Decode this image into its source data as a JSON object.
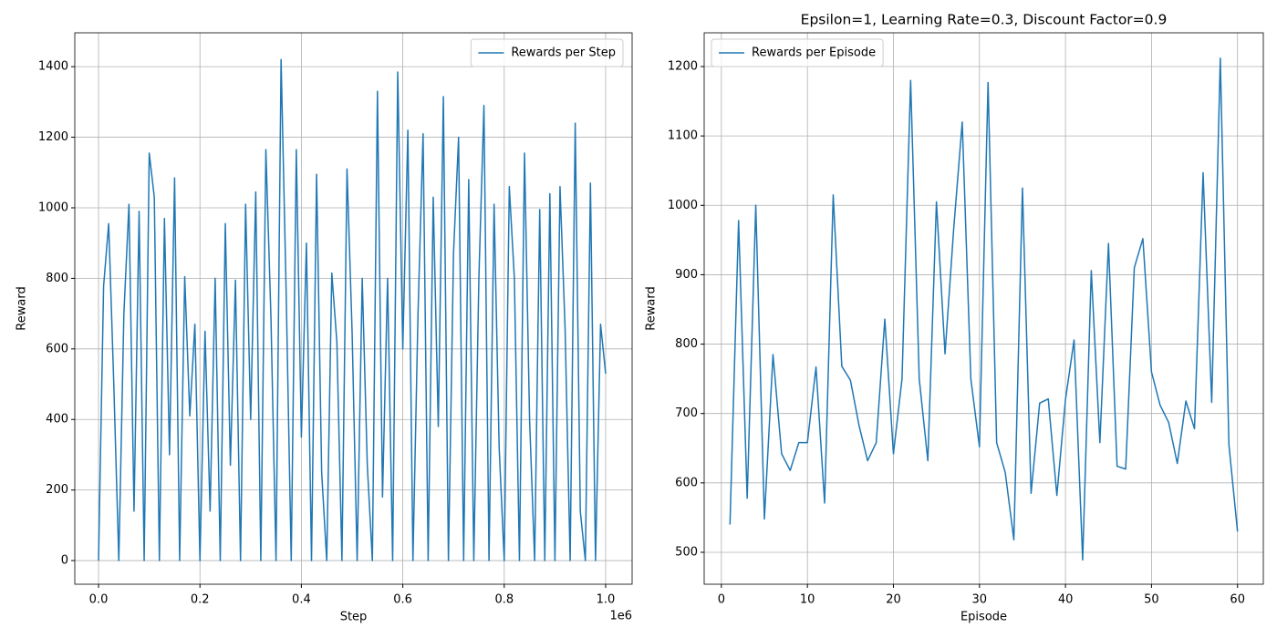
{
  "chart_data": [
    {
      "type": "line",
      "xlabel": "Step",
      "ylabel": "Reward",
      "x_offset_text": "1e6",
      "x": [
        0,
        10000,
        20000,
        30000,
        40000,
        50000,
        60000,
        70000,
        80000,
        90000,
        100000,
        110000,
        120000,
        130000,
        140000,
        150000,
        160000,
        170000,
        180000,
        190000,
        200000,
        210000,
        220000,
        230000,
        240000,
        250000,
        260000,
        270000,
        280000,
        290000,
        300000,
        310000,
        320000,
        330000,
        340000,
        350000,
        360000,
        370000,
        380000,
        390000,
        400000,
        410000,
        420000,
        430000,
        440000,
        450000,
        460000,
        470000,
        480000,
        490000,
        500000,
        510000,
        520000,
        530000,
        540000,
        550000,
        560000,
        570000,
        580000,
        590000,
        600000,
        610000,
        620000,
        630000,
        640000,
        650000,
        660000,
        670000,
        680000,
        690000,
        700000,
        710000,
        720000,
        730000,
        740000,
        750000,
        760000,
        770000,
        780000,
        790000,
        800000,
        810000,
        820000,
        830000,
        840000,
        850000,
        860000,
        870000,
        880000,
        890000,
        900000,
        910000,
        920000,
        930000,
        940000,
        950000,
        960000,
        970000,
        980000,
        990000,
        1000000
      ],
      "series": [
        {
          "name": "Rewards per Step",
          "color": "#1f77b4",
          "values": [
            0,
            778,
            955,
            505,
            0,
            700,
            1010,
            140,
            990,
            0,
            1155,
            1030,
            0,
            970,
            300,
            1085,
            0,
            805,
            410,
            670,
            0,
            650,
            140,
            800,
            0,
            955,
            270,
            795,
            0,
            1010,
            400,
            1045,
            0,
            1165,
            690,
            0,
            1420,
            760,
            0,
            1165,
            350,
            900,
            0,
            1095,
            250,
            0,
            815,
            620,
            0,
            1110,
            650,
            0,
            800,
            270,
            0,
            1330,
            180,
            800,
            0,
            1385,
            600,
            1220,
            0,
            700,
            1210,
            0,
            1030,
            380,
            1315,
            0,
            870,
            1200,
            0,
            1080,
            0,
            800,
            1290,
            0,
            1010,
            320,
            0,
            1060,
            800,
            0,
            1155,
            400,
            0,
            995,
            0,
            1040,
            0,
            1060,
            660,
            0,
            1240,
            140,
            0,
            1070,
            0,
            670,
            530
          ]
        }
      ],
      "xlim": [
        -46800,
        1052200
      ],
      "ylim": [
        -67,
        1496
      ],
      "xticks": [
        {
          "value": 0,
          "label": "0.0"
        },
        {
          "value": 200000,
          "label": "0.2"
        },
        {
          "value": 400000,
          "label": "0.4"
        },
        {
          "value": 600000,
          "label": "0.6"
        },
        {
          "value": 800000,
          "label": "0.8"
        },
        {
          "value": 1000000,
          "label": "1.0"
        }
      ],
      "yticks": [
        0,
        200,
        400,
        600,
        800,
        1000,
        1200,
        1400
      ],
      "grid": true,
      "legend": "upper right"
    },
    {
      "type": "line",
      "title": "Epsilon=1, Learning Rate=0.3, Discount Factor=0.9",
      "xlabel": "Episode",
      "ylabel": "Reward",
      "x": [
        1,
        2,
        3,
        4,
        5,
        6,
        7,
        8,
        9,
        10,
        11,
        12,
        13,
        14,
        15,
        16,
        17,
        18,
        19,
        20,
        21,
        22,
        23,
        24,
        25,
        26,
        27,
        28,
        29,
        30,
        31,
        32,
        33,
        34,
        35,
        36,
        37,
        38,
        39,
        40,
        41,
        42,
        43,
        44,
        45,
        46,
        47,
        48,
        49,
        50,
        51,
        52,
        53,
        54,
        55,
        56,
        57,
        58,
        59,
        60
      ],
      "series": [
        {
          "name": "Rewards per Episode",
          "color": "#1f77b4",
          "values": [
            540,
            978,
            578,
            1000,
            548,
            785,
            642,
            618,
            658,
            658,
            767,
            571,
            1015,
            768,
            748,
            683,
            632,
            658,
            836,
            642,
            750,
            1180,
            750,
            632,
            1005,
            786,
            965,
            1120,
            750,
            652,
            1177,
            658,
            615,
            518,
            1025,
            585,
            715,
            721,
            582,
            720,
            806,
            489,
            906,
            658,
            945,
            624,
            620,
            910,
            952,
            760,
            712,
            687,
            628,
            718,
            678,
            1047,
            716,
            1212,
            655,
            530
          ]
        }
      ],
      "xlim": [
        -2,
        63
      ],
      "ylim": [
        454,
        1248.6
      ],
      "xticks": [
        0,
        10,
        20,
        30,
        40,
        50,
        60
      ],
      "yticks": [
        500,
        600,
        700,
        800,
        900,
        1000,
        1100,
        1200
      ],
      "grid": true,
      "legend": "upper left"
    }
  ]
}
